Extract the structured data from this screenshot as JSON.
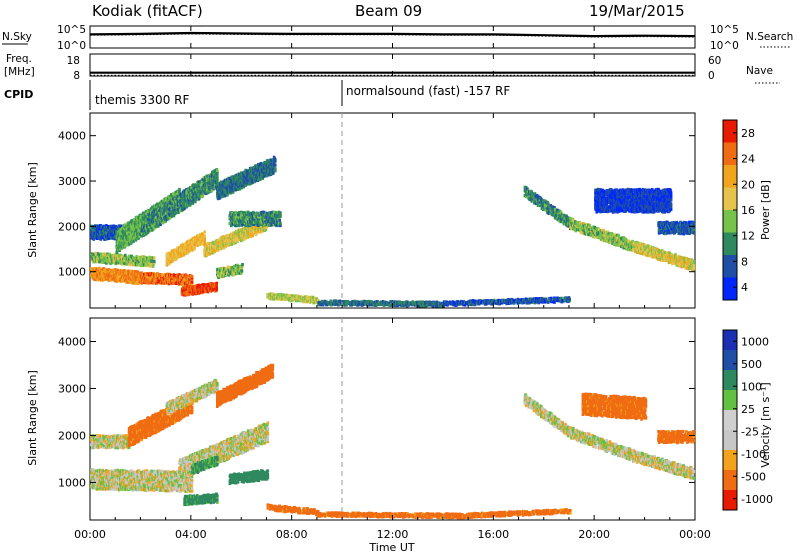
{
  "header": {
    "radar": "Kodiak (fitACF)",
    "beam": "Beam 09",
    "date": "19/Mar/2015"
  },
  "colors": {
    "power_scale": [
      "#0026ff",
      "#1f4fa6",
      "#2e8a5e",
      "#76c24a",
      "#e6c44c",
      "#f1a51e",
      "#f06c12",
      "#e81b00"
    ],
    "velocity_scale": [
      "#e81b00",
      "#f06c12",
      "#f3a21c",
      "#c7c7c7",
      "#cfcfcf",
      "#62c043",
      "#2e8a5e",
      "#1f4fa6",
      "#1a2fb3"
    ]
  },
  "chart_data": [
    {
      "type": "line",
      "name": "N.Sky / N.Search panel",
      "left_label": "N.Sky",
      "right_label": "N.Search",
      "left_ticks": [
        "10^5",
        "10^0"
      ],
      "right_ticks": [
        "10^5",
        "10^0"
      ],
      "x": [
        0,
        2,
        4,
        6,
        8,
        10,
        12,
        14,
        16,
        18,
        20,
        22,
        24
      ],
      "series": [
        {
          "name": "N.Sky",
          "values": [
            3.1,
            3.2,
            3.4,
            3.3,
            3.2,
            3.2,
            3.2,
            3.1,
            3.1,
            2.9,
            2.7,
            2.8,
            2.7
          ]
        },
        {
          "name": "N.Search",
          "values": [
            2.9,
            3.0,
            3.2,
            3.1,
            3.0,
            3.0,
            3.0,
            2.9,
            2.9,
            2.7,
            2.5,
            2.6,
            2.5
          ]
        }
      ]
    },
    {
      "type": "line",
      "name": "Freq / Nave panel",
      "left_label": "Freq.",
      "left_unit": "[MHz]",
      "right_label": "Nave",
      "left_ticks": [
        "18",
        "8"
      ],
      "right_ticks": [
        "60",
        "0"
      ],
      "x": [
        0,
        24
      ],
      "series": [
        {
          "name": "Freq",
          "values": [
            9.5,
            9.5
          ]
        },
        {
          "name": "Nave",
          "values": [
            2,
            2
          ]
        }
      ]
    },
    {
      "type": "table",
      "name": "CPID",
      "label": "CPID",
      "segments": [
        {
          "start": 0,
          "end": 10,
          "text": "themis 3300 RF"
        },
        {
          "start": 10,
          "end": 24,
          "text": "normalsound (fast) -157 RF"
        }
      ]
    },
    {
      "type": "heatmap",
      "name": "Power",
      "ylabel": "Slant Range [km]",
      "colorbar_label": "Power [dB]",
      "colorbar_ticks": [
        "28",
        "24",
        "20",
        "16",
        "12",
        "8",
        "4"
      ],
      "colorbar_range": [
        0,
        32
      ],
      "yticks": [
        "1000",
        "2000",
        "3000",
        "4000"
      ],
      "ylim": [
        200,
        4500
      ],
      "xlim": [
        0,
        24
      ],
      "dashed_line_x": 10,
      "features": [
        {
          "x0": 0.0,
          "y0": 1000,
          "x1": 2.0,
          "y1": 900,
          "w": 260,
          "p": 24
        },
        {
          "x0": 2.0,
          "y0": 900,
          "x1": 4.0,
          "y1": 850,
          "w": 220,
          "p": 26
        },
        {
          "x0": 0.0,
          "y0": 1350,
          "x1": 2.5,
          "y1": 1250,
          "w": 200,
          "p": 14
        },
        {
          "x0": 0.0,
          "y0": 1900,
          "x1": 1.5,
          "y1": 1900,
          "w": 300,
          "p": 6
        },
        {
          "x0": 1.0,
          "y0": 1700,
          "x1": 3.5,
          "y1": 2600,
          "w": 500,
          "p": 12
        },
        {
          "x0": 2.0,
          "y0": 2000,
          "x1": 5.0,
          "y1": 3100,
          "w": 400,
          "p": 10
        },
        {
          "x0": 3.0,
          "y0": 1300,
          "x1": 4.5,
          "y1": 1800,
          "w": 250,
          "p": 20
        },
        {
          "x0": 4.5,
          "y0": 1500,
          "x1": 7.0,
          "y1": 2100,
          "w": 260,
          "p": 18
        },
        {
          "x0": 5.5,
          "y0": 2200,
          "x1": 7.5,
          "y1": 2200,
          "w": 300,
          "p": 10
        },
        {
          "x0": 5.0,
          "y0": 2800,
          "x1": 7.3,
          "y1": 3400,
          "w": 350,
          "p": 8
        },
        {
          "x0": 3.6,
          "y0": 600,
          "x1": 5.0,
          "y1": 700,
          "w": 180,
          "p": 28
        },
        {
          "x0": 5.0,
          "y0": 1000,
          "x1": 6.0,
          "y1": 1100,
          "w": 200,
          "p": 14
        },
        {
          "x0": 7.0,
          "y0": 500,
          "x1": 9.0,
          "y1": 400,
          "w": 120,
          "p": 16
        },
        {
          "x0": 9.0,
          "y0": 350,
          "x1": 14.0,
          "y1": 320,
          "w": 90,
          "p": 8
        },
        {
          "x0": 14.0,
          "y0": 330,
          "x1": 19.0,
          "y1": 420,
          "w": 90,
          "p": 6
        },
        {
          "x0": 17.2,
          "y0": 2800,
          "x1": 19.0,
          "y1": 2100,
          "w": 220,
          "p": 10
        },
        {
          "x0": 19.0,
          "y0": 2100,
          "x1": 21.5,
          "y1": 1600,
          "w": 230,
          "p": 14
        },
        {
          "x0": 21.5,
          "y0": 1600,
          "x1": 24.0,
          "y1": 1150,
          "w": 220,
          "p": 18
        },
        {
          "x0": 22.5,
          "y0": 2000,
          "x1": 24.0,
          "y1": 2000,
          "w": 260,
          "p": 6
        },
        {
          "x0": 20.0,
          "y0": 2600,
          "x1": 23.0,
          "y1": 2600,
          "w": 500,
          "p": 4
        }
      ]
    },
    {
      "type": "heatmap",
      "name": "Velocity",
      "ylabel": "Slant Range [km]",
      "colorbar_label": "Velocity [m s⁻¹]",
      "colorbar_ticks": [
        "1000",
        "500",
        "100",
        "25",
        "-25",
        "-100",
        "-500",
        "-1000"
      ],
      "colorbar_range": [
        -1000,
        1000
      ],
      "yticks": [
        "1000",
        "2000",
        "3000",
        "4000"
      ],
      "ylim": [
        200,
        4500
      ],
      "xlim": [
        0,
        24
      ],
      "dashed_line_x": 10,
      "features": [
        {
          "x0": 0.0,
          "y0": 1100,
          "x1": 4.0,
          "y1": 1050,
          "w": 420,
          "v": 0
        },
        {
          "x0": 0.0,
          "y0": 1900,
          "x1": 1.5,
          "y1": 1900,
          "w": 260,
          "v": 0
        },
        {
          "x0": 3.5,
          "y0": 1300,
          "x1": 7.0,
          "y1": 2100,
          "w": 420,
          "v": 0
        },
        {
          "x0": 1.5,
          "y0": 2000,
          "x1": 4.0,
          "y1": 2700,
          "w": 400,
          "v": -150
        },
        {
          "x0": 3.0,
          "y0": 2600,
          "x1": 5.0,
          "y1": 3100,
          "w": 250,
          "v": 0
        },
        {
          "x0": 5.0,
          "y0": 2800,
          "x1": 7.2,
          "y1": 3400,
          "w": 300,
          "v": -200
        },
        {
          "x0": 3.7,
          "y0": 650,
          "x1": 5.0,
          "y1": 700,
          "w": 180,
          "v": 150
        },
        {
          "x0": 4.0,
          "y0": 1300,
          "x1": 5.0,
          "y1": 1500,
          "w": 200,
          "v": 120
        },
        {
          "x0": 5.5,
          "y0": 1100,
          "x1": 7.0,
          "y1": 1200,
          "w": 200,
          "v": 300
        },
        {
          "x0": 7.0,
          "y0": 500,
          "x1": 9.0,
          "y1": 400,
          "w": 110,
          "v": -150
        },
        {
          "x0": 9.0,
          "y0": 350,
          "x1": 15.0,
          "y1": 320,
          "w": 80,
          "v": -150
        },
        {
          "x0": 15.0,
          "y0": 330,
          "x1": 19.0,
          "y1": 420,
          "w": 80,
          "v": -150
        },
        {
          "x0": 17.2,
          "y0": 2800,
          "x1": 19.0,
          "y1": 2100,
          "w": 220,
          "v": 0
        },
        {
          "x0": 19.0,
          "y0": 2100,
          "x1": 21.5,
          "y1": 1600,
          "w": 230,
          "v": 0
        },
        {
          "x0": 21.5,
          "y0": 1600,
          "x1": 24.0,
          "y1": 1200,
          "w": 230,
          "v": 0
        },
        {
          "x0": 22.5,
          "y0": 2000,
          "x1": 24.0,
          "y1": 2000,
          "w": 240,
          "v": -150
        },
        {
          "x0": 19.5,
          "y0": 2700,
          "x1": 22.0,
          "y1": 2600,
          "w": 450,
          "v": -150
        }
      ]
    }
  ],
  "xaxis": {
    "ticks": [
      "00:00",
      "04:00",
      "08:00",
      "12:00",
      "16:00",
      "20:00",
      "00:00"
    ],
    "label": "Time UT"
  }
}
